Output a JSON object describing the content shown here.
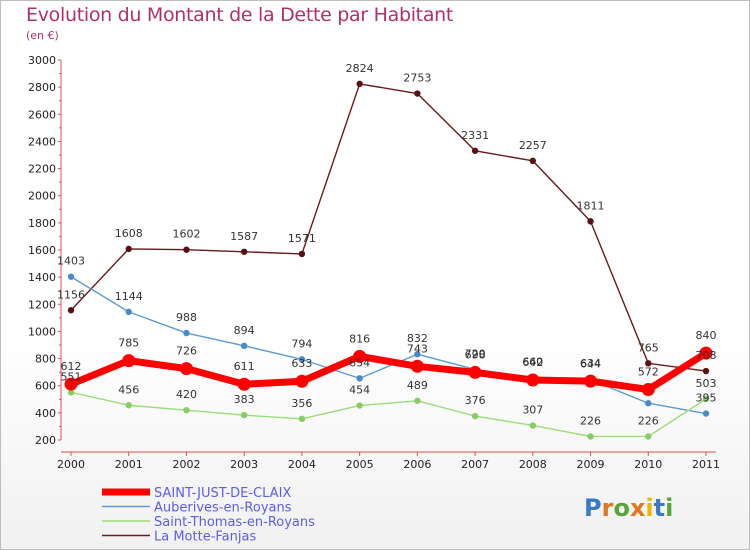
{
  "title": "Evolution du Montant de la Dette par Habitant",
  "unit": "(en €)",
  "brand": "Proxiti",
  "chart_data": {
    "type": "line",
    "title": "Evolution du Montant de la Dette par Habitant",
    "subtitle": "(en €)",
    "categories": [
      "2000",
      "2001",
      "2002",
      "2003",
      "2004",
      "2005",
      "2006",
      "2007",
      "2008",
      "2009",
      "2010",
      "2011"
    ],
    "ylim": [
      200,
      3000
    ],
    "yticks": [
      200,
      400,
      600,
      800,
      1000,
      1200,
      1400,
      1600,
      1800,
      2000,
      2200,
      2400,
      2600,
      2800,
      3000
    ],
    "grid": false,
    "legend_position": "bottom",
    "series": [
      {
        "name": "SAINT-JUST-DE-CLAIX",
        "color": "#ff0000",
        "width": 7,
        "values": [
          612,
          785,
          726,
          611,
          633,
          816,
          743,
          698,
          642,
          634,
          572,
          840
        ]
      },
      {
        "name": "Auberives-en-Royans",
        "color": "#5b9bd5",
        "width": 1.4,
        "values": [
          1403,
          1144,
          988,
          894,
          794,
          654,
          832,
          720,
          660,
          644,
          471,
          395
        ]
      },
      {
        "name": "Saint-Thomas-en-Royans",
        "color": "#99dd77",
        "width": 1.4,
        "values": [
          551,
          456,
          420,
          383,
          356,
          454,
          489,
          376,
          307,
          226,
          226,
          503
        ]
      },
      {
        "name": "La Motte-Fanjas",
        "color": "#6b1a1a",
        "width": 1.4,
        "values": [
          1156,
          1608,
          1602,
          1587,
          1571,
          2824,
          2753,
          2331,
          2257,
          1811,
          765,
          708
        ]
      }
    ],
    "labels": {
      "SAINT-JUST-DE-CLAIX": [
        "612",
        "785",
        "726",
        "611",
        "633",
        "816",
        "743",
        "698",
        "642",
        "634",
        "572",
        "840"
      ],
      "Auberives-en-Royans": [
        "1403",
        "1144",
        "988",
        "894",
        "794",
        "654",
        "832",
        "720",
        "660",
        "644",
        "",
        "395"
      ],
      "Saint-Thomas-en-Royans": [
        "551",
        "456",
        "420",
        "383",
        "356",
        "454",
        "489",
        "376",
        "307",
        "226",
        "226",
        "503"
      ],
      "La Motte-Fanjas": [
        "1156",
        "1608",
        "1602",
        "1587",
        "1571",
        "2824",
        "2753",
        "2331",
        "2257",
        "1811",
        "765",
        "708"
      ]
    }
  }
}
